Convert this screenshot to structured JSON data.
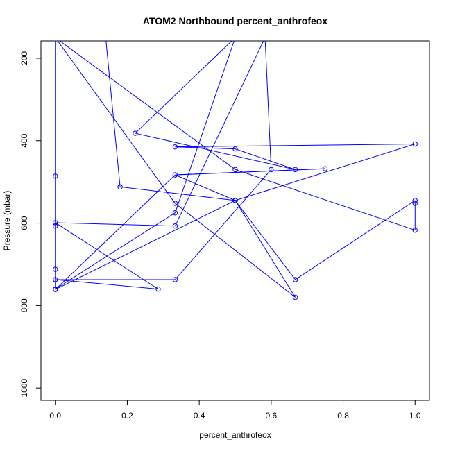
{
  "chart_data": {
    "type": "line",
    "title": "ATOM2 Northbound percent_anthrofeox",
    "xlabel": "percent_anthrofeox",
    "ylabel": "Pressure (mbar)",
    "xlim": [
      -0.04,
      1.04
    ],
    "ylim": [
      1030,
      158
    ],
    "y_reversed": true,
    "x_ticks": [
      0.0,
      0.2,
      0.4,
      0.6,
      0.8,
      1.0
    ],
    "x_tick_labels": [
      "0.0",
      "0.2",
      "0.4",
      "0.6",
      "0.8",
      "1.0"
    ],
    "y_ticks": [
      200,
      400,
      600,
      800,
      1000
    ],
    "y_tick_labels": [
      "200",
      "400",
      "600",
      "800",
      "1000"
    ],
    "grid": false,
    "line_color": "#0000ff",
    "markers": "open-circle",
    "series": [
      {
        "x": [
          0.14,
          0.18,
          0.5,
          0.667,
          1.0,
          1.0,
          1.0,
          0.5,
          0.0,
          0.0,
          0.0,
          0.0,
          0.0,
          0.286,
          0.0,
          0.333,
          0.583,
          0.6,
          0.333,
          0.0,
          0.0,
          0.333,
          0.5,
          0.222,
          0.667,
          0.5,
          0.333,
          1.0,
          0.5,
          0.0,
          0.333,
          0.75,
          0.333,
          0.5,
          0.667,
          0.333,
          0.0,
          1.0,
          0.55
        ],
        "y": [
          150,
          512,
          545,
          737,
          545,
          552,
          617,
          470,
          150,
          486,
          607,
          712,
          737,
          760,
          599,
          607,
          150,
          470,
          737,
          737,
          760,
          575,
          150,
          382,
          470,
          420,
          415,
          408,
          545,
          761,
          483,
          468,
          483,
          545,
          780,
          552,
          150,
          150,
          150
        ]
      }
    ]
  }
}
